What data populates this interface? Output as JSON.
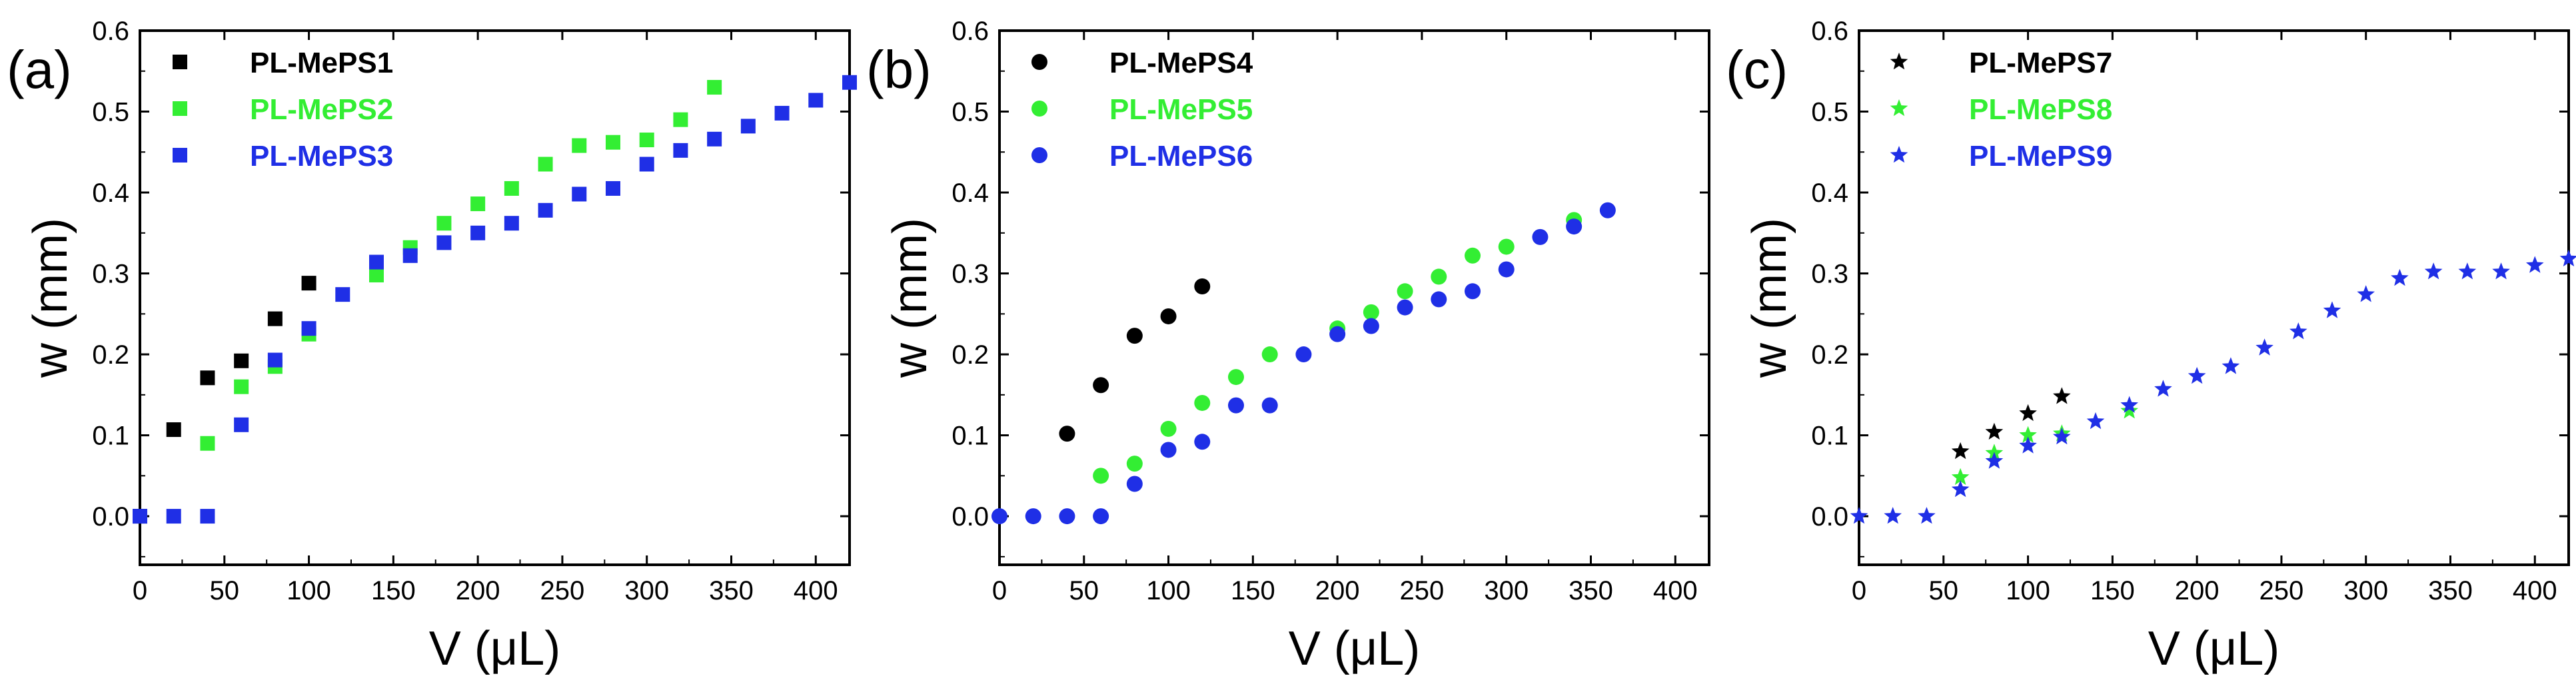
{
  "chart_data": [
    {
      "type": "scatter",
      "panel_label": "(a)",
      "xlabel": "V (μL)",
      "ylabel": "w (mm)",
      "xlim": [
        0,
        420
      ],
      "ylim": [
        -0.06,
        0.6
      ],
      "xticks": [
        0,
        50,
        100,
        150,
        200,
        250,
        300,
        350,
        400
      ],
      "yticks": [
        0.0,
        0.1,
        0.2,
        0.3,
        0.4,
        0.5,
        0.6
      ],
      "legend_position": "top-left",
      "series": [
        {
          "name": "PL-MePS1",
          "color": "#000000",
          "marker": "square",
          "x": [
            0,
            20,
            40,
            60,
            80,
            100
          ],
          "y": [
            0.0,
            0.107,
            0.171,
            0.192,
            0.244,
            0.288
          ]
        },
        {
          "name": "PL-MePS2",
          "color": "#33ee33",
          "marker": "square",
          "x": [
            40,
            60,
            80,
            100,
            140,
            160,
            180,
            200,
            220,
            240,
            260,
            280,
            300,
            320,
            340
          ],
          "y": [
            0.09,
            0.16,
            0.185,
            0.225,
            0.298,
            0.332,
            0.362,
            0.386,
            0.405,
            0.435,
            0.458,
            0.462,
            0.465,
            0.49,
            0.53
          ]
        },
        {
          "name": "PL-MePS3",
          "color": "#1f2fe6",
          "marker": "square",
          "x": [
            0,
            20,
            40,
            60,
            80,
            100,
            120,
            140,
            160,
            180,
            200,
            220,
            240,
            260,
            280,
            300,
            320,
            340,
            360,
            380,
            400,
            420
          ],
          "y": [
            0.0,
            0.0,
            0.0,
            0.113,
            0.193,
            0.232,
            0.274,
            0.314,
            0.322,
            0.338,
            0.35,
            0.362,
            0.378,
            0.398,
            0.405,
            0.435,
            0.452,
            0.466,
            0.482,
            0.498,
            0.514,
            0.536
          ]
        }
      ]
    },
    {
      "type": "scatter",
      "panel_label": "(b)",
      "xlabel": "V (μL)",
      "ylabel": "w (mm)",
      "xlim": [
        0,
        420
      ],
      "ylim": [
        -0.06,
        0.6
      ],
      "xticks": [
        0,
        50,
        100,
        150,
        200,
        250,
        300,
        350,
        400
      ],
      "yticks": [
        0.0,
        0.1,
        0.2,
        0.3,
        0.4,
        0.5,
        0.6
      ],
      "legend_position": "top-left",
      "series": [
        {
          "name": "PL-MePS4",
          "color": "#000000",
          "marker": "circle",
          "x": [
            40,
            60,
            80,
            100,
            120
          ],
          "y": [
            0.102,
            0.162,
            0.223,
            0.247,
            0.284
          ]
        },
        {
          "name": "PL-MePS5",
          "color": "#33ee33",
          "marker": "circle",
          "x": [
            60,
            80,
            100,
            120,
            140,
            160,
            200,
            220,
            240,
            260,
            280,
            300,
            340
          ],
          "y": [
            0.05,
            0.065,
            0.108,
            0.14,
            0.172,
            0.2,
            0.232,
            0.252,
            0.278,
            0.296,
            0.322,
            0.333,
            0.366
          ]
        },
        {
          "name": "PL-MePS6",
          "color": "#1f2fe6",
          "marker": "circle",
          "x": [
            0,
            20,
            40,
            60,
            80,
            100,
            120,
            140,
            160,
            180,
            200,
            220,
            240,
            260,
            280,
            300,
            320,
            340,
            360
          ],
          "y": [
            0.0,
            0.0,
            0.0,
            0.0,
            0.04,
            0.082,
            0.092,
            0.137,
            0.137,
            0.2,
            0.225,
            0.235,
            0.258,
            0.268,
            0.278,
            0.305,
            0.345,
            0.358,
            0.378
          ]
        }
      ]
    },
    {
      "type": "scatter",
      "panel_label": "(c)",
      "xlabel": "V (μL)",
      "ylabel": "w (mm)",
      "xlim": [
        0,
        420
      ],
      "ylim": [
        -0.06,
        0.6
      ],
      "xticks": [
        0,
        50,
        100,
        150,
        200,
        250,
        300,
        350,
        400
      ],
      "yticks": [
        0.0,
        0.1,
        0.2,
        0.3,
        0.4,
        0.5,
        0.6
      ],
      "legend_position": "top-left",
      "series": [
        {
          "name": "PL-MePS7",
          "color": "#000000",
          "marker": "star",
          "x": [
            60,
            80,
            100,
            120
          ],
          "y": [
            0.08,
            0.104,
            0.127,
            0.148
          ]
        },
        {
          "name": "PL-MePS8",
          "color": "#33ee33",
          "marker": "star",
          "x": [
            60,
            80,
            100,
            120,
            160
          ],
          "y": [
            0.048,
            0.078,
            0.1,
            0.102,
            0.13
          ]
        },
        {
          "name": "PL-MePS9",
          "color": "#1f2fe6",
          "marker": "star",
          "x": [
            0,
            20,
            40,
            60,
            80,
            100,
            120,
            140,
            160,
            180,
            200,
            220,
            240,
            260,
            280,
            300,
            320,
            340,
            360,
            380,
            400,
            420
          ],
          "y": [
            0.0,
            0.0,
            0.0,
            0.033,
            0.068,
            0.087,
            0.098,
            0.117,
            0.137,
            0.157,
            0.173,
            0.185,
            0.208,
            0.228,
            0.254,
            0.274,
            0.294,
            0.302,
            0.302,
            0.302,
            0.31,
            0.318
          ]
        }
      ]
    }
  ]
}
